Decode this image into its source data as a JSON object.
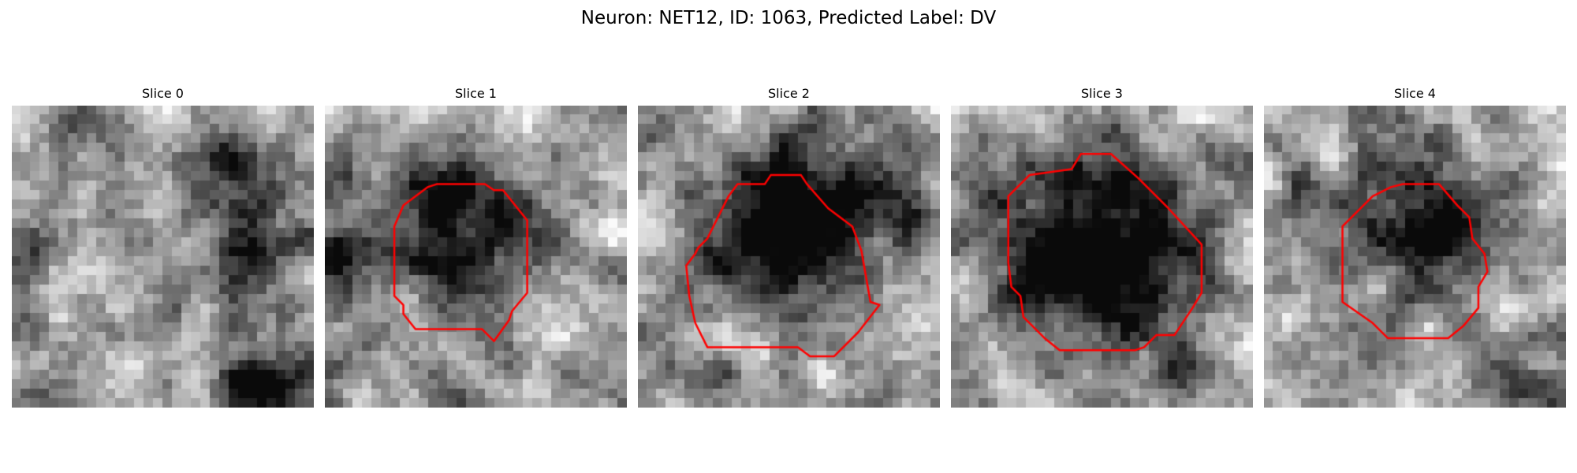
{
  "figure": {
    "title": "Neuron: NET12, ID: 1063, Predicted Label: DV"
  },
  "panels": [
    {
      "title": "Slice 0",
      "has_outline": false
    },
    {
      "title": "Slice 1",
      "has_outline": true
    },
    {
      "title": "Slice 2",
      "has_outline": true
    },
    {
      "title": "Slice 3",
      "has_outline": true
    },
    {
      "title": "Slice 4",
      "has_outline": true
    }
  ],
  "colors": {
    "outline": "#ff0000",
    "background": "#ffffff",
    "colormap": "gray"
  },
  "grid_size": 32
}
